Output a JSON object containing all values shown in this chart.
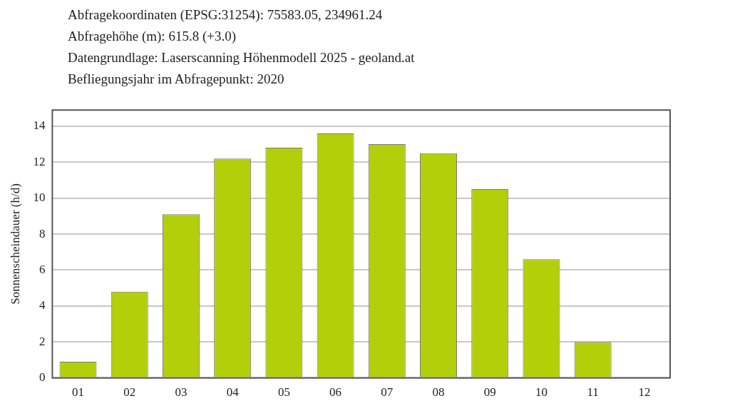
{
  "chart_data": {
    "type": "bar",
    "annotations": [
      "Abfragekoordinaten (EPSG:31254): 75583.05, 234961.24",
      "Abfragehöhe (m): 615.8 (+3.0)",
      "Datengrundlage: Laserscanning Höhenmodell 2025 - geoland.at",
      "Befliegungsjahr im Abfragepunkt: 2020"
    ],
    "ylabel": "Sonnenscheindauer (h/d)",
    "categories": [
      "01",
      "02",
      "03",
      "04",
      "05",
      "06",
      "07",
      "08",
      "09",
      "10",
      "11",
      "12"
    ],
    "values": [
      0.9,
      4.8,
      9.1,
      12.2,
      12.8,
      13.6,
      13.0,
      12.5,
      10.5,
      6.6,
      2.0,
      0
    ],
    "color": "#b3cf0a",
    "ylim": [
      0,
      14.9
    ],
    "yticks": [
      0,
      2,
      4,
      6,
      8,
      10,
      12,
      14
    ],
    "grid": "y",
    "legend": false
  }
}
